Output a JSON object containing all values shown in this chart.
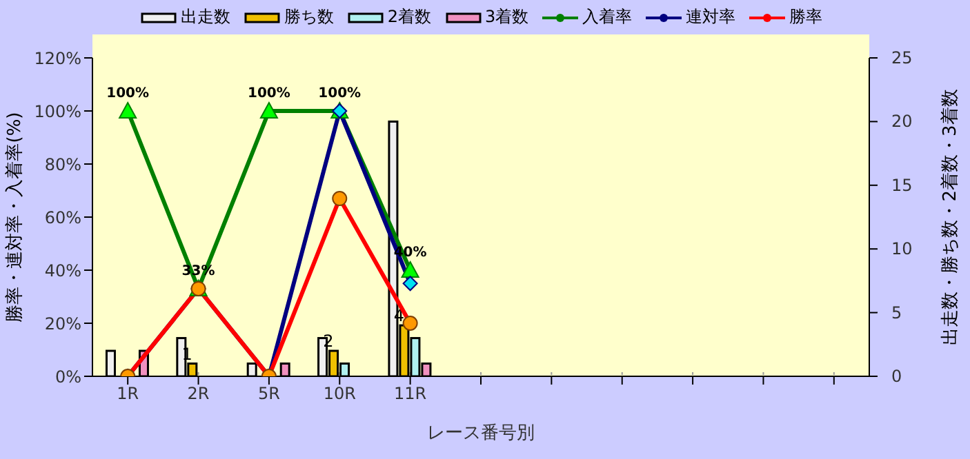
{
  "chart_data": {
    "type": "bar",
    "xlabel": "レース番号別",
    "ylabel": "勝率・連対率・入着率(%)",
    "y2label": "出走数・勝ち数・2着数・3着数",
    "categories": [
      "1R",
      "2R",
      "5R",
      "10R",
      "11R",
      null,
      null,
      null,
      null,
      null,
      null
    ],
    "series": [
      {
        "name": "出走数",
        "axis": "y2",
        "color": "#f0f0f0",
        "values": [
          2,
          3,
          1,
          3,
          20,
          null,
          null,
          null,
          null,
          null,
          null
        ]
      },
      {
        "name": "勝ち数",
        "axis": "y2",
        "color": "#f0c000",
        "values": [
          0,
          1,
          0,
          2,
          4,
          null,
          null,
          null,
          null,
          null,
          null
        ],
        "value_labels": [
          null,
          "1",
          null,
          "2",
          "4",
          null,
          null,
          null,
          null,
          null,
          null
        ]
      },
      {
        "name": "2着数",
        "axis": "y2",
        "color": "#b0f0f0",
        "values": [
          0,
          0,
          0,
          1,
          3,
          null,
          null,
          null,
          null,
          null,
          null
        ]
      },
      {
        "name": "3着数",
        "axis": "y2",
        "color": "#f090c0",
        "values": [
          2,
          0,
          1,
          0,
          1,
          null,
          null,
          null,
          null,
          null,
          null
        ]
      },
      {
        "name": "入着率",
        "type": "line",
        "color": "#008000",
        "marker": "triangle",
        "values": [
          100,
          33,
          100,
          100,
          40,
          null,
          null,
          null,
          null,
          null,
          null
        ],
        "value_labels": [
          "100%",
          "33%",
          "100%",
          "100%",
          "40%",
          null,
          null,
          null,
          null,
          null,
          null
        ]
      },
      {
        "name": "連対率",
        "type": "line",
        "color": "#000080",
        "marker": "diamond",
        "values": [
          0,
          33,
          0,
          100,
          35,
          null,
          null,
          null,
          null,
          null,
          null
        ]
      },
      {
        "name": "勝率",
        "type": "line",
        "color": "#ff0000",
        "marker": "circle",
        "values": [
          0,
          33,
          0,
          67,
          20,
          null,
          null,
          null,
          null,
          null,
          null
        ]
      }
    ],
    "ylim": [
      0,
      120
    ],
    "yticks": [
      {
        "value": 0,
        "label": "0%"
      },
      {
        "value": 20,
        "label": "20%"
      },
      {
        "value": 40,
        "label": "40%"
      },
      {
        "value": 60,
        "label": "60%"
      },
      {
        "value": 80,
        "label": "80%"
      },
      {
        "value": 100,
        "label": "100%"
      },
      {
        "value": 120,
        "label": "120%"
      }
    ],
    "y2lim": [
      0,
      25
    ],
    "y2ticks": [
      0,
      5,
      10,
      15,
      20,
      25
    ],
    "grid": true,
    "legend": "top"
  }
}
